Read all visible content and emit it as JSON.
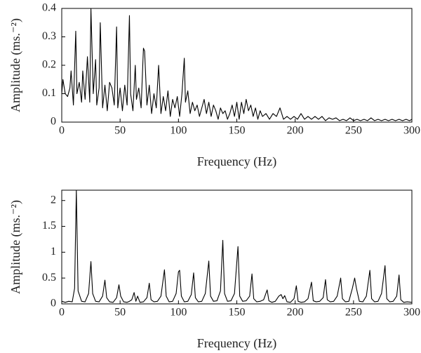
{
  "chart_data": [
    {
      "type": "line",
      "xlabel": "Frequency (Hz)",
      "ylabel": "Amplitude (ms.⁻²)",
      "color": "#000000",
      "xlim": [
        0,
        300
      ],
      "xticks": [
        0,
        50,
        100,
        150,
        200,
        250,
        300
      ],
      "ylim": [
        0,
        0.4
      ],
      "yticks": [
        0,
        0.1,
        0.2,
        0.3,
        0.4
      ],
      "x": [
        0,
        1,
        3,
        5,
        7,
        8,
        10,
        12,
        13,
        15,
        17,
        18,
        20,
        22,
        24,
        25,
        27,
        29,
        30,
        32,
        33,
        35,
        37,
        39,
        41,
        43,
        45,
        47,
        48,
        50,
        52,
        54,
        56,
        58,
        59,
        61,
        63,
        64,
        66,
        68,
        70,
        71,
        73,
        75,
        77,
        79,
        81,
        83,
        85,
        87,
        89,
        91,
        93,
        95,
        97,
        99,
        101,
        103,
        105,
        106,
        108,
        110,
        112,
        114,
        116,
        118,
        120,
        122,
        124,
        126,
        128,
        130,
        132,
        134,
        136,
        138,
        140,
        142,
        144,
        146,
        148,
        150,
        152,
        154,
        156,
        158,
        160,
        162,
        164,
        166,
        168,
        170,
        172,
        175,
        178,
        181,
        184,
        187,
        190,
        193,
        196,
        199,
        202,
        205,
        208,
        211,
        214,
        217,
        220,
        223,
        226,
        229,
        232,
        235,
        238,
        241,
        244,
        247,
        250,
        253,
        256,
        259,
        262,
        265,
        268,
        271,
        274,
        277,
        280,
        283,
        286,
        289,
        292,
        295,
        298,
        300
      ],
      "values": [
        0.1,
        0.15,
        0.1,
        0.09,
        0.12,
        0.18,
        0.06,
        0.32,
        0.1,
        0.14,
        0.07,
        0.18,
        0.08,
        0.23,
        0.07,
        0.4,
        0.1,
        0.22,
        0.06,
        0.12,
        0.35,
        0.05,
        0.13,
        0.04,
        0.14,
        0.12,
        0.06,
        0.335,
        0.05,
        0.12,
        0.04,
        0.13,
        0.06,
        0.375,
        0.1,
        0.04,
        0.2,
        0.08,
        0.12,
        0.05,
        0.26,
        0.25,
        0.06,
        0.13,
        0.03,
        0.1,
        0.05,
        0.2,
        0.03,
        0.09,
        0.04,
        0.11,
        0.02,
        0.08,
        0.05,
        0.09,
        0.02,
        0.1,
        0.225,
        0.07,
        0.11,
        0.03,
        0.07,
        0.04,
        0.06,
        0.02,
        0.05,
        0.08,
        0.03,
        0.07,
        0.02,
        0.06,
        0.04,
        0.01,
        0.05,
        0.03,
        0.04,
        0.01,
        0.03,
        0.06,
        0.02,
        0.07,
        0.01,
        0.07,
        0.03,
        0.08,
        0.04,
        0.06,
        0.02,
        0.05,
        0.01,
        0.04,
        0.02,
        0.03,
        0.01,
        0.03,
        0.02,
        0.05,
        0.01,
        0.02,
        0.01,
        0.02,
        0.01,
        0.03,
        0.01,
        0.02,
        0.01,
        0.02,
        0.01,
        0.02,
        0.005,
        0.015,
        0.01,
        0.015,
        0.005,
        0.01,
        0.005,
        0.015,
        0.005,
        0.01,
        0.005,
        0.01,
        0.005,
        0.015,
        0.005,
        0.01,
        0.005,
        0.01,
        0.005,
        0.01,
        0.005,
        0.01,
        0.005,
        0.01,
        0.005,
        0.01
      ]
    },
    {
      "type": "line",
      "xlabel": "Frequency (Hz)",
      "ylabel": "Amplitude (ms.⁻²)",
      "color": "#000000",
      "xlim": [
        0,
        300
      ],
      "xticks": [
        0,
        50,
        100,
        150,
        200,
        250,
        300
      ],
      "ylim": [
        0,
        2.2
      ],
      "yticks": [
        0,
        0.5,
        1,
        1.5,
        2
      ],
      "x": [
        0,
        3,
        6,
        9,
        11,
        12.5,
        14,
        17,
        20,
        23,
        25,
        26.5,
        29,
        32,
        35,
        37,
        38.5,
        41,
        44,
        47,
        49,
        50.5,
        53,
        56,
        58,
        60,
        62,
        63.5,
        65,
        67,
        70,
        73,
        75,
        76.5,
        79,
        82,
        85,
        88,
        89.5,
        92,
        95,
        98,
        100,
        101,
        102.5,
        105,
        108,
        111,
        113,
        114.5,
        117,
        120,
        123,
        126,
        127.5,
        130,
        133,
        136,
        138,
        139.5,
        142,
        145,
        148,
        151,
        152.5,
        155,
        158,
        161,
        163,
        164.5,
        167,
        170,
        173,
        176,
        177.5,
        180,
        183,
        186,
        188,
        189.5,
        191,
        193,
        196,
        199,
        201,
        202.5,
        205,
        208,
        211,
        214,
        215.5,
        218,
        221,
        224,
        226,
        227.5,
        230,
        233,
        236,
        239,
        240.5,
        243,
        246,
        249,
        251,
        252.5,
        255,
        258,
        261,
        264,
        265.5,
        268,
        271,
        274,
        277,
        278.5,
        281,
        284,
        287,
        289,
        290.5,
        293,
        296,
        300
      ],
      "values": [
        0.05,
        0.03,
        0.05,
        0.04,
        0.3,
        2.2,
        0.25,
        0.05,
        0.04,
        0.2,
        0.82,
        0.2,
        0.05,
        0.04,
        0.15,
        0.46,
        0.12,
        0.04,
        0.03,
        0.12,
        0.37,
        0.15,
        0.04,
        0.03,
        0.05,
        0.08,
        0.22,
        0.05,
        0.15,
        0.03,
        0.04,
        0.12,
        0.4,
        0.08,
        0.04,
        0.05,
        0.15,
        0.66,
        0.15,
        0.04,
        0.05,
        0.2,
        0.62,
        0.65,
        0.15,
        0.04,
        0.05,
        0.18,
        0.6,
        0.12,
        0.04,
        0.05,
        0.2,
        0.83,
        0.15,
        0.05,
        0.06,
        0.25,
        1.23,
        0.2,
        0.05,
        0.06,
        0.2,
        1.11,
        0.15,
        0.05,
        0.06,
        0.15,
        0.58,
        0.1,
        0.04,
        0.05,
        0.08,
        0.27,
        0.06,
        0.03,
        0.05,
        0.15,
        0.18,
        0.1,
        0.16,
        0.04,
        0.03,
        0.1,
        0.35,
        0.05,
        0.03,
        0.04,
        0.1,
        0.42,
        0.06,
        0.04,
        0.05,
        0.12,
        0.47,
        0.08,
        0.04,
        0.05,
        0.15,
        0.5,
        0.1,
        0.04,
        0.05,
        0.3,
        0.5,
        0.3,
        0.05,
        0.04,
        0.15,
        0.65,
        0.1,
        0.04,
        0.05,
        0.2,
        0.74,
        0.1,
        0.04,
        0.05,
        0.15,
        0.56,
        0.08,
        0.03,
        0.04,
        0.03
      ]
    }
  ]
}
